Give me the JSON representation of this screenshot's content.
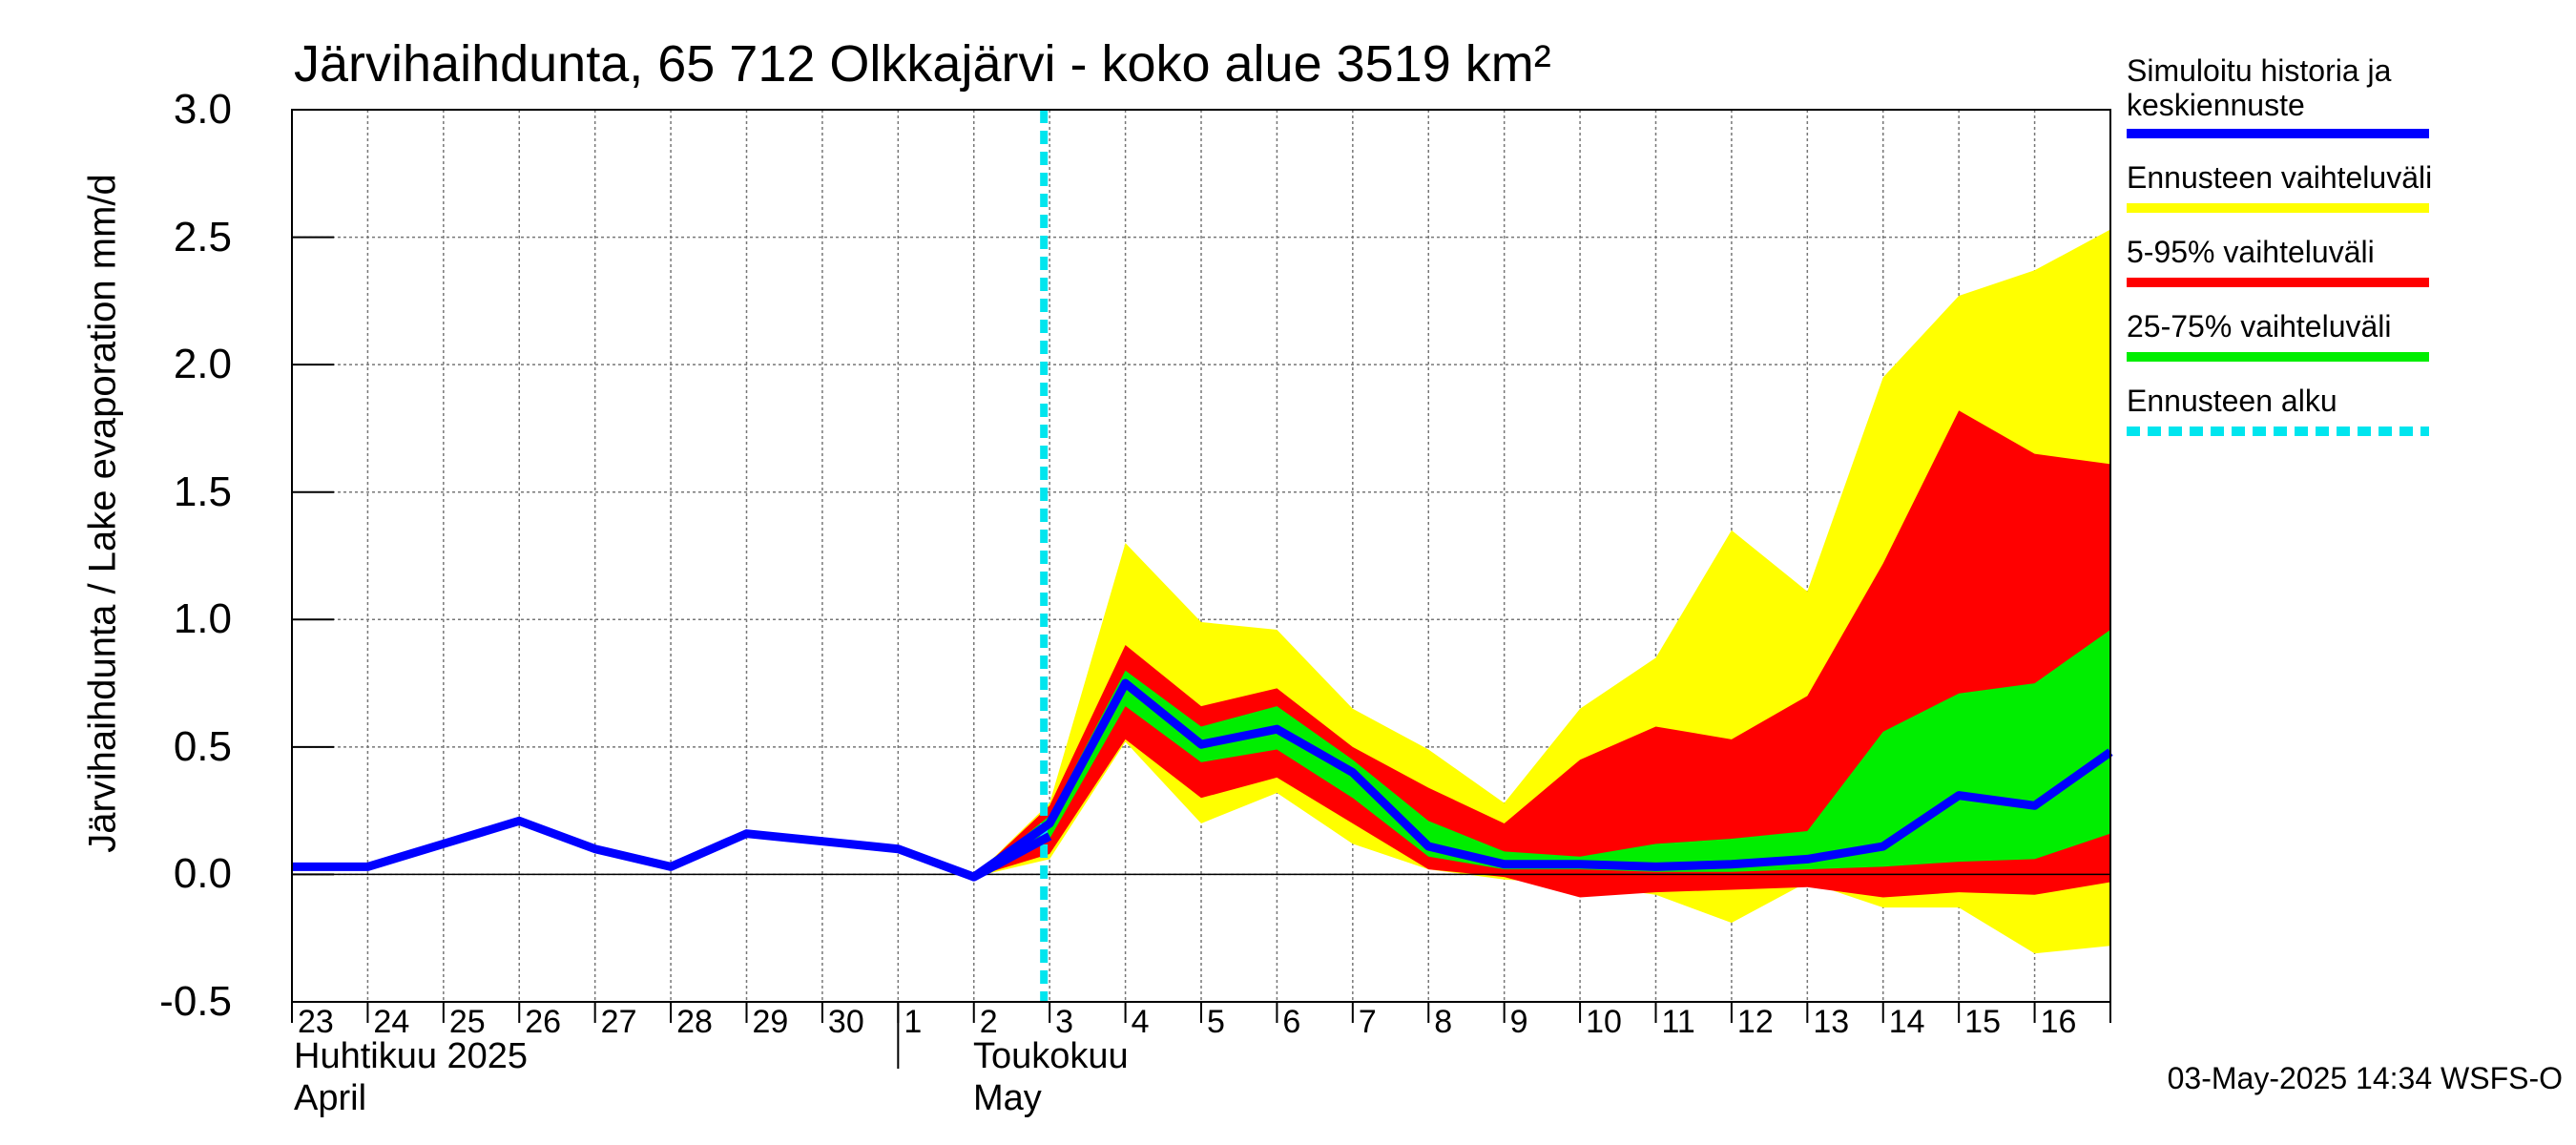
{
  "chart_data": {
    "type": "area",
    "title": "Järvihaihdunta, 65 712 Olkkajärvi - koko alue 3519 km²",
    "ylabel": "Järvihaihdunta / Lake evaporation   mm/d",
    "ylim": [
      -0.5,
      3.0
    ],
    "yticks": [
      "3.0",
      "2.5",
      "2.0",
      "1.5",
      "1.0",
      "0.5",
      "0.0",
      "-0.5"
    ],
    "ytick_values": [
      3.0,
      2.5,
      2.0,
      1.5,
      1.0,
      0.5,
      0.0,
      -0.5
    ],
    "x_day_labels": [
      "23",
      "24",
      "25",
      "26",
      "27",
      "28",
      "29",
      "30",
      "1",
      "2",
      "3",
      "4",
      "5",
      "6",
      "7",
      "8",
      "9",
      "10",
      "11",
      "12",
      "13",
      "14",
      "15",
      "16"
    ],
    "month_labels": [
      {
        "fi": "Huhtikuu  2025",
        "en": "April"
      },
      {
        "fi": "Toukokuu",
        "en": "May"
      }
    ],
    "forecast_start_date": "2025-05-03",
    "grid": true,
    "legend_position": "right",
    "history": {
      "dates": [
        "2025-04-23",
        "2025-04-24",
        "2025-04-25",
        "2025-04-26",
        "2025-04-27",
        "2025-04-28",
        "2025-04-29",
        "2025-04-30",
        "2025-05-01",
        "2025-05-02",
        "2025-05-03"
      ],
      "values": [
        0.03,
        0.03,
        0.12,
        0.21,
        0.1,
        0.03,
        0.16,
        0.13,
        0.1,
        -0.01,
        0.15
      ]
    },
    "forecast": {
      "dates": [
        "2025-05-02",
        "2025-05-03",
        "2025-05-04",
        "2025-05-05",
        "2025-05-06",
        "2025-05-07",
        "2025-05-08",
        "2025-05-09",
        "2025-05-10",
        "2025-05-11",
        "2025-05-12",
        "2025-05-13",
        "2025-05-14",
        "2025-05-15",
        "2025-05-16",
        "2025-05-17"
      ],
      "median": [
        -0.01,
        0.2,
        0.75,
        0.51,
        0.57,
        0.4,
        0.11,
        0.04,
        0.04,
        0.03,
        0.04,
        0.06,
        0.11,
        0.31,
        0.27,
        0.48
      ],
      "p25": [
        -0.01,
        0.14,
        0.66,
        0.44,
        0.49,
        0.3,
        0.07,
        0.02,
        0.02,
        0.01,
        0.01,
        0.02,
        0.03,
        0.05,
        0.06,
        0.16
      ],
      "p75": [
        -0.01,
        0.23,
        0.8,
        0.58,
        0.66,
        0.45,
        0.21,
        0.09,
        0.07,
        0.12,
        0.14,
        0.17,
        0.56,
        0.71,
        0.75,
        0.96
      ],
      "p5": [
        -0.01,
        0.08,
        0.53,
        0.3,
        0.38,
        0.2,
        0.02,
        -0.01,
        -0.09,
        -0.07,
        -0.06,
        -0.05,
        -0.09,
        -0.07,
        -0.08,
        -0.03
      ],
      "p95": [
        -0.01,
        0.27,
        0.9,
        0.66,
        0.73,
        0.5,
        0.34,
        0.2,
        0.45,
        0.58,
        0.53,
        0.7,
        1.22,
        1.82,
        1.65,
        1.61
      ],
      "min": [
        -0.01,
        0.06,
        0.52,
        0.2,
        0.32,
        0.12,
        0.02,
        -0.02,
        -0.04,
        -0.08,
        -0.19,
        -0.03,
        -0.13,
        -0.13,
        -0.31,
        -0.28
      ],
      "max": [
        -0.01,
        0.28,
        1.3,
        0.99,
        0.96,
        0.65,
        0.49,
        0.28,
        0.65,
        0.85,
        1.35,
        1.11,
        1.95,
        2.27,
        2.37,
        2.53
      ]
    },
    "legend": [
      {
        "label": "Simuloitu historia ja keskiennuste",
        "color": "#0000ff",
        "style": "line"
      },
      {
        "label": "Ennusteen vaihteluväli",
        "color": "#ffff00",
        "style": "band"
      },
      {
        "label": "5-95% vaihteluväli",
        "color": "#ff0000",
        "style": "band"
      },
      {
        "label": "25-75% vaihteluväli",
        "color": "#00ee00",
        "style": "band"
      },
      {
        "label": "Ennusteen alku",
        "color": "#00e5ee",
        "style": "dashed"
      }
    ]
  },
  "footer": "03-May-2025 14:34 WSFS-O"
}
